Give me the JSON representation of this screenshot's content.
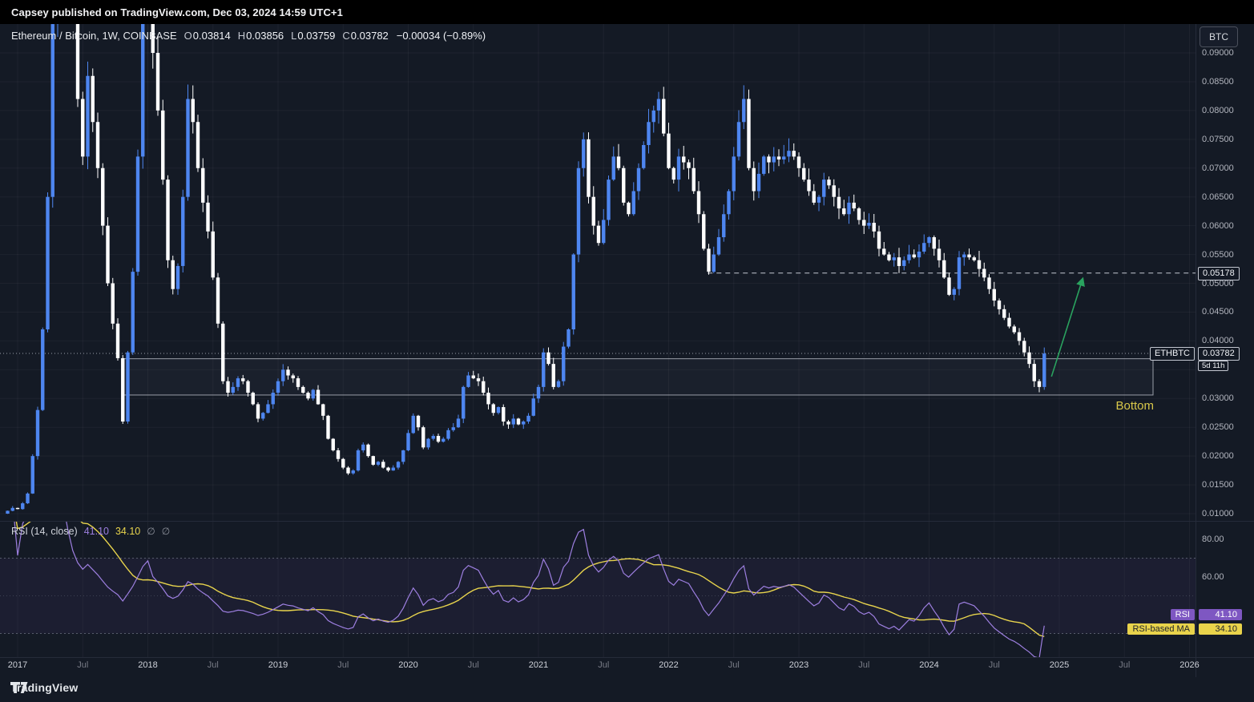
{
  "publish_bar": {
    "text": "Capsey published on TradingView.com, Dec 03, 2024 14:59 UTC+1"
  },
  "header": {
    "symbol_line": "Ethereum / Bitcoin, 1W, COINBASE",
    "ohlc": [
      {
        "k": "O",
        "v": "0.03814"
      },
      {
        "k": "H",
        "v": "0.03856"
      },
      {
        "k": "L",
        "v": "0.03759"
      },
      {
        "k": "C",
        "v": "0.03782"
      }
    ],
    "change": "−0.00034 (−0.89%)"
  },
  "top_right": {
    "unit_button": "BTC"
  },
  "price_scale": {
    "labels": [
      {
        "t": "0.09000",
        "v": 0.09
      },
      {
        "t": "0.08500",
        "v": 0.085
      },
      {
        "t": "0.08000",
        "v": 0.08
      },
      {
        "t": "0.07500",
        "v": 0.075
      },
      {
        "t": "0.07000",
        "v": 0.07
      },
      {
        "t": "0.06500",
        "v": 0.065
      },
      {
        "t": "0.06000",
        "v": 0.06
      },
      {
        "t": "0.05500",
        "v": 0.055
      },
      {
        "t": "0.05000",
        "v": 0.05
      },
      {
        "t": "0.04500",
        "v": 0.045
      },
      {
        "t": "0.04000",
        "v": 0.04
      },
      {
        "t": "0.03000",
        "v": 0.03
      },
      {
        "t": "0.02500",
        "v": 0.025
      },
      {
        "t": "0.02000",
        "v": 0.02
      },
      {
        "t": "0.01500",
        "v": 0.015
      },
      {
        "t": "0.01000",
        "v": 0.01
      }
    ],
    "level": {
      "label": "0.05178",
      "value": 0.05178
    },
    "current": {
      "symbol_label": "ETHBTC",
      "price_label": "0.03782",
      "countdown": "5d 11h",
      "value": 0.03782
    }
  },
  "time_scale": {
    "labels": [
      {
        "t": "2017",
        "major": true
      },
      {
        "t": "Jul",
        "major": false
      },
      {
        "t": "2018",
        "major": true
      },
      {
        "t": "Jul",
        "major": false
      },
      {
        "t": "2019",
        "major": true
      },
      {
        "t": "Jul",
        "major": false
      },
      {
        "t": "2020",
        "major": true
      },
      {
        "t": "Jul",
        "major": false
      },
      {
        "t": "2021",
        "major": true
      },
      {
        "t": "Jul",
        "major": false
      },
      {
        "t": "2022",
        "major": true
      },
      {
        "t": "Jul",
        "major": false
      },
      {
        "t": "2023",
        "major": true
      },
      {
        "t": "Jul",
        "major": false
      },
      {
        "t": "2024",
        "major": true
      },
      {
        "t": "Jul",
        "major": false
      },
      {
        "t": "2025",
        "major": true
      },
      {
        "t": "Jul",
        "major": false
      },
      {
        "t": "2026",
        "major": true
      }
    ]
  },
  "rsi": {
    "title": "RSI",
    "params": "(14, close)",
    "value": "41.10",
    "ma_value": "34.10",
    "empty_1": "∅",
    "empty_2": "∅",
    "scale_labels": [
      {
        "t": "80.00",
        "v": 80
      },
      {
        "t": "60.00",
        "v": 60
      }
    ],
    "badges": [
      {
        "label": "RSI",
        "value": "41.10",
        "color": "purple"
      },
      {
        "label": "RSI-based MA",
        "value": "34.10",
        "color": "yellow"
      }
    ]
  },
  "annotations": {
    "bottom_label": "Bottom",
    "support_box": {
      "year_start": 2017.8,
      "year_end": 2025.72,
      "price_top": 0.0369,
      "price_bottom": 0.0306
    },
    "resistance_line": {
      "value": 0.05178,
      "year_start": 2022.3
    },
    "arrow": {
      "year_from": 2024.94,
      "price_from": 0.0338,
      "year_to": 2025.18,
      "price_to": 0.0508
    }
  },
  "footer": {
    "brand": "TradingView"
  },
  "colors": {
    "background": "#141a25",
    "up": "#4e86f0",
    "down": "#ffffff",
    "rsi_line": "#9d7fe0",
    "rsi_ma": "#e8d44d",
    "badge_purple": "#7e57c2",
    "badge_yellow": "#e9d34b",
    "arrow_green": "#2aa35f",
    "annotation_yellow": "#d9c84a",
    "grid": "rgba(255,255,255,0.045)",
    "axis_text": "#b2b5be",
    "axis_text_minor": "#787b86"
  },
  "chart_data": {
    "type": "candlestick",
    "title": "Ethereum / Bitcoin weekly (ETHBTC, COINBASE)",
    "timeframe": "1W",
    "start_year": 2017,
    "points_per_year": 26,
    "lead_open": 0.01,
    "ylim": [
      0.005,
      0.095
    ],
    "closes": [
      0.0105,
      0.011,
      0.0108,
      0.0118,
      0.0135,
      0.02,
      0.028,
      0.042,
      0.065,
      0.095,
      0.135,
      0.148,
      0.125,
      0.1,
      0.082,
      0.072,
      0.086,
      0.078,
      0.07,
      0.06,
      0.05,
      0.043,
      0.037,
      0.026,
      0.038,
      0.052,
      0.072,
      0.098,
      0.115,
      0.09,
      0.08,
      0.068,
      0.054,
      0.049,
      0.053,
      0.065,
      0.082,
      0.078,
      0.07,
      0.064,
      0.059,
      0.051,
      0.043,
      0.033,
      0.031,
      0.032,
      0.0335,
      0.033,
      0.031,
      0.029,
      0.0265,
      0.0275,
      0.029,
      0.031,
      0.033,
      0.035,
      0.034,
      0.0335,
      0.032,
      0.031,
      0.03,
      0.0315,
      0.029,
      0.027,
      0.023,
      0.021,
      0.0195,
      0.018,
      0.017,
      0.0175,
      0.021,
      0.022,
      0.02,
      0.0185,
      0.019,
      0.018,
      0.0175,
      0.018,
      0.019,
      0.021,
      0.024,
      0.027,
      0.025,
      0.0215,
      0.023,
      0.0235,
      0.0225,
      0.023,
      0.0245,
      0.025,
      0.0265,
      0.032,
      0.034,
      0.0335,
      0.033,
      0.031,
      0.029,
      0.0275,
      0.0285,
      0.026,
      0.0255,
      0.0265,
      0.0255,
      0.026,
      0.027,
      0.03,
      0.032,
      0.038,
      0.036,
      0.032,
      0.033,
      0.039,
      0.042,
      0.055,
      0.07,
      0.075,
      0.065,
      0.06,
      0.057,
      0.061,
      0.068,
      0.072,
      0.07,
      0.064,
      0.062,
      0.066,
      0.07,
      0.074,
      0.078,
      0.08,
      0.082,
      0.076,
      0.07,
      0.068,
      0.072,
      0.071,
      0.07,
      0.066,
      0.062,
      0.056,
      0.052,
      0.055,
      0.058,
      0.062,
      0.066,
      0.072,
      0.078,
      0.082,
      0.07,
      0.066,
      0.069,
      0.072,
      0.071,
      0.072,
      0.0715,
      0.072,
      0.073,
      0.072,
      0.07,
      0.068,
      0.066,
      0.064,
      0.065,
      0.068,
      0.067,
      0.065,
      0.063,
      0.062,
      0.064,
      0.063,
      0.061,
      0.06,
      0.0605,
      0.059,
      0.056,
      0.055,
      0.054,
      0.0545,
      0.053,
      0.054,
      0.055,
      0.0545,
      0.0555,
      0.057,
      0.058,
      0.056,
      0.054,
      0.051,
      0.048,
      0.049,
      0.0545,
      0.055,
      0.0545,
      0.054,
      0.0525,
      0.051,
      0.049,
      0.047,
      0.0455,
      0.044,
      0.0425,
      0.0415,
      0.04,
      0.038,
      0.036,
      0.033,
      0.032,
      0.0378
    ],
    "rsi_panel": {
      "type": "line",
      "indicator": "RSI (14, close)",
      "current": 41.1,
      "ma_current": 34.1,
      "bands": [
        70,
        50,
        30
      ],
      "ylim": [
        0,
        100
      ],
      "derived_from": "closes"
    }
  }
}
